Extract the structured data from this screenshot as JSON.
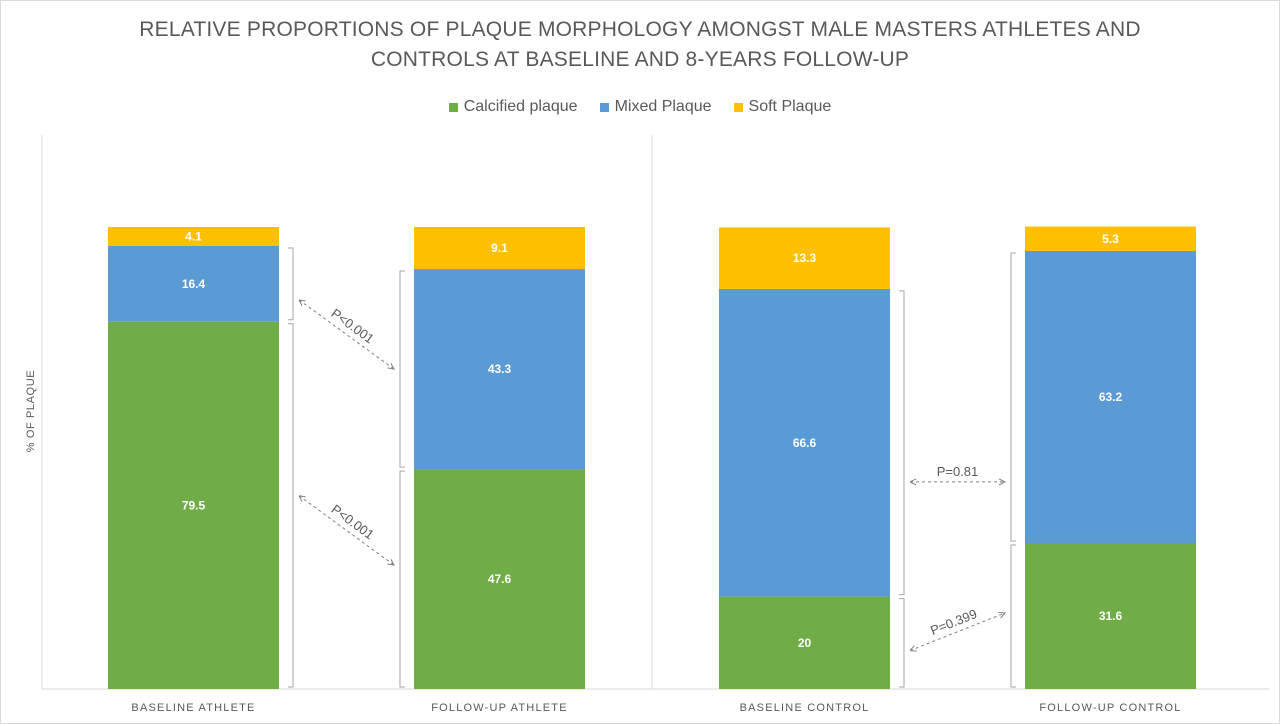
{
  "chart_data": {
    "type": "bar",
    "stacked": true,
    "title_lines": [
      "RELATIVE PROPORTIONS OF PLAQUE MORPHOLOGY AMONGST MALE MASTERS ATHLETES AND",
      "CONTROLS AT BASELINE AND 8-YEARS FOLLOW-UP"
    ],
    "ylabel": "% OF PLAQUE",
    "xlabel": "",
    "ylim": [
      0,
      100
    ],
    "legend_position": "top",
    "grid": false,
    "categories": [
      "BASELINE ATHLETE",
      "FOLLOW-UP ATHLETE",
      "BASELINE CONTROL",
      "FOLLOW-UP CONTROL"
    ],
    "series": [
      {
        "name": "Calcified plaque",
        "color": "#70ad47",
        "values": [
          79.5,
          47.6,
          20,
          31.6
        ]
      },
      {
        "name": "Mixed Plaque",
        "color": "#5b9bd5",
        "values": [
          16.4,
          43.3,
          66.6,
          63.2
        ]
      },
      {
        "name": "Soft Plaque",
        "color": "#ffc000",
        "values": [
          4.1,
          9.1,
          13.3,
          5.3
        ]
      }
    ],
    "annotations": [
      {
        "text": "P<0.001",
        "from_category": 0,
        "to_category": 1,
        "series": "Mixed Plaque"
      },
      {
        "text": "P<0.001",
        "from_category": 0,
        "to_category": 1,
        "series": "Calcified plaque"
      },
      {
        "text": "P=0.81",
        "from_category": 2,
        "to_category": 3,
        "series": "Mixed Plaque"
      },
      {
        "text": "P=0.399",
        "from_category": 2,
        "to_category": 3,
        "series": "Calcified plaque"
      }
    ]
  }
}
